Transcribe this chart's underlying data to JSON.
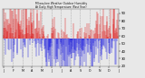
{
  "background_color": "#e8e8e8",
  "plot_bg_color": "#e8e8e8",
  "grid_color": "#aaaaaa",
  "blue_color": "#0000dd",
  "red_color": "#dd0000",
  "ylim": [
    20,
    95
  ],
  "ytick_values": [
    20,
    30,
    40,
    50,
    60,
    70,
    80,
    90
  ],
  "n_points": 365,
  "mean_humidity": 57,
  "amplitude": 15,
  "noise_scale": 20,
  "seed": 7,
  "n_grid_lines": 13,
  "figwidth": 1.6,
  "figheight": 0.87,
  "dpi": 100
}
